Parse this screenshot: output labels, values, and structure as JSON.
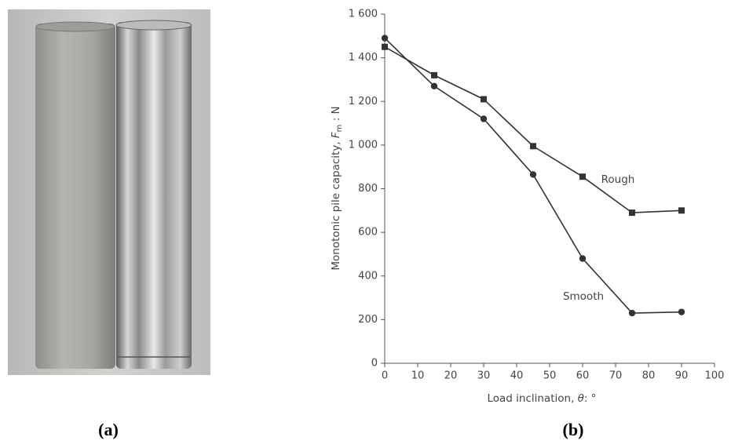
{
  "panel_labels": [
    "(a)",
    "(b)"
  ],
  "chart_data": {
    "type": "line",
    "x_label": {
      "text": "Load inclination, ",
      "symbol": "θ",
      "unit": ": °"
    },
    "y_label": {
      "text": "Monotonic pile capacity, ",
      "symbol": "F",
      "subscript": "m",
      "unit": " : N"
    },
    "x": [
      0,
      15,
      30,
      45,
      60,
      75,
      90
    ],
    "series": [
      {
        "name": "Rough",
        "color": "#333333",
        "marker": "square",
        "values": [
          1450,
          1320,
          1210,
          995,
          855,
          690,
          700
        ]
      },
      {
        "name": "Smooth",
        "color": "#333333",
        "marker": "circle",
        "values": [
          1490,
          1270,
          1120,
          865,
          480,
          230,
          235
        ]
      }
    ],
    "xlim": [
      0,
      100
    ],
    "xticks": [
      0,
      10,
      20,
      30,
      40,
      50,
      60,
      70,
      80,
      90,
      100
    ],
    "ylim": [
      0,
      1600
    ],
    "yticks": [
      0,
      200,
      400,
      600,
      800,
      {
        "value": 1000,
        "label": "1 000"
      },
      {
        "value": 1200,
        "label": "1 200"
      },
      {
        "value": 1400,
        "label": "1 400"
      },
      {
        "value": 1600,
        "label": "1 600"
      }
    ],
    "grid": false
  }
}
